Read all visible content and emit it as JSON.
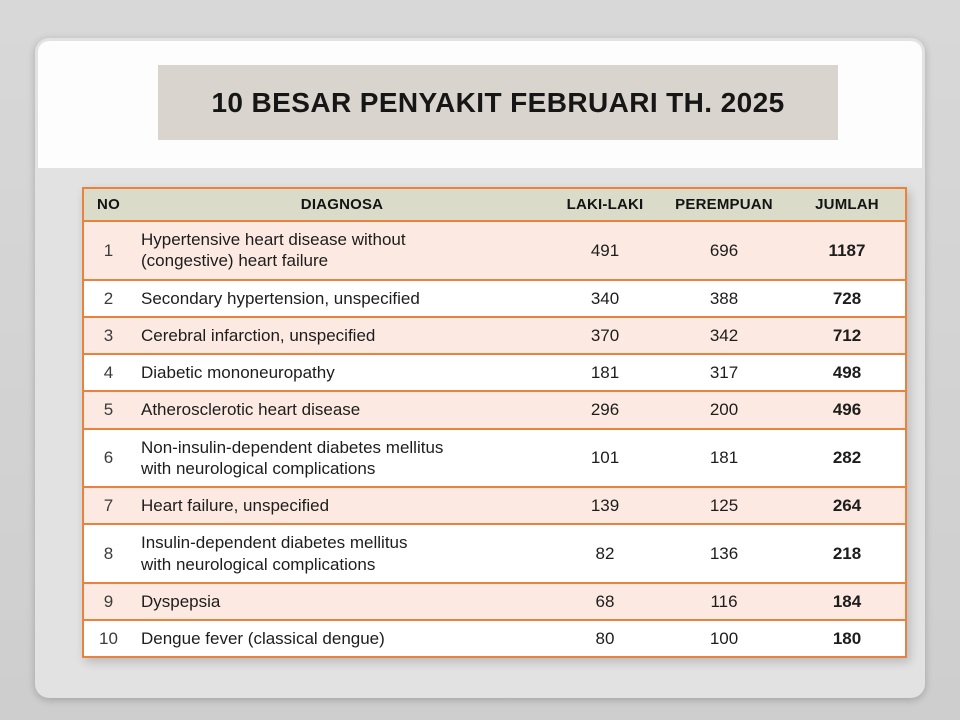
{
  "slide": {
    "title": "10 BESAR PENYAKIT FEBRUARI TH. 2025"
  },
  "table": {
    "headers": {
      "no": "NO",
      "diagnosa": "DIAGNOSA",
      "laki": "LAKI-LAKI",
      "perempuan": "PEREMPUAN",
      "jumlah": "JUMLAH"
    },
    "rows": [
      {
        "no": "1",
        "diagnosa": "Hypertensive heart disease without\n(congestive) heart failure",
        "laki": "491",
        "perempuan": "696",
        "jumlah": "1187"
      },
      {
        "no": "2",
        "diagnosa": "Secondary hypertension, unspecified",
        "laki": "340",
        "perempuan": "388",
        "jumlah": "728"
      },
      {
        "no": "3",
        "diagnosa": "Cerebral infarction, unspecified",
        "laki": "370",
        "perempuan": "342",
        "jumlah": "712"
      },
      {
        "no": "4",
        "diagnosa": "Diabetic mononeuropathy",
        "laki": "181",
        "perempuan": "317",
        "jumlah": "498"
      },
      {
        "no": "5",
        "diagnosa": "Atherosclerotic heart disease",
        "laki": "296",
        "perempuan": "200",
        "jumlah": "496"
      },
      {
        "no": "6",
        "diagnosa": "Non-insulin-dependent diabetes mellitus\nwith neurological complications",
        "laki": "101",
        "perempuan": "181",
        "jumlah": "282"
      },
      {
        "no": "7",
        "diagnosa": "Heart failure, unspecified",
        "laki": "139",
        "perempuan": "125",
        "jumlah": "264"
      },
      {
        "no": "8",
        "diagnosa": "Insulin-dependent diabetes mellitus\nwith neurological complications",
        "laki": "82",
        "perempuan": "136",
        "jumlah": "218"
      },
      {
        "no": "9",
        "diagnosa": "Dyspepsia",
        "laki": "68",
        "perempuan": "116",
        "jumlah": "184"
      },
      {
        "no": "10",
        "diagnosa": "Dengue fever (classical dengue)",
        "laki": "80",
        "perempuan": "100",
        "jumlah": "180"
      }
    ]
  },
  "colors": {
    "page_background": "#d3d3d3",
    "slide_background": "#e2e2e2",
    "title_band": "#fdfdfd",
    "title_box": "#d9d5ce",
    "header_fill": "#dadbc9",
    "band_fill": "#fceae2",
    "row_fill": "#ffffff",
    "border_orange": "#e8823c",
    "text": "#1d1d1d"
  }
}
